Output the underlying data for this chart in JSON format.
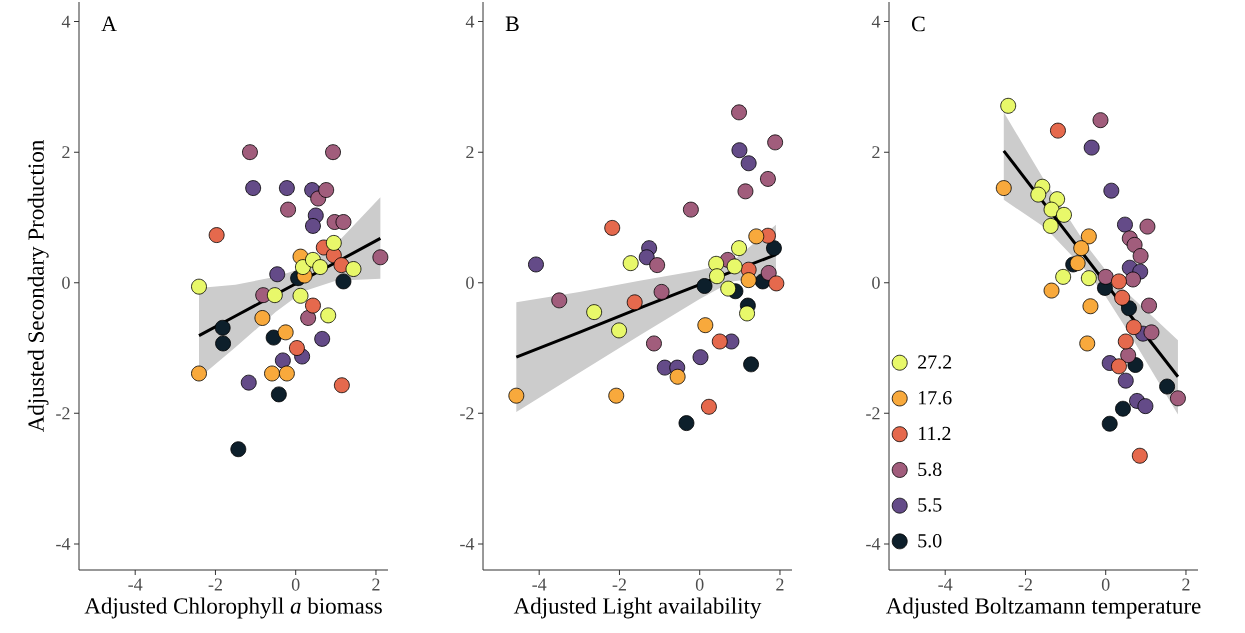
{
  "chart_data": [
    {
      "type": "scatter",
      "title": "A",
      "xlabel": "Adjusted Chlorophyll *a* biomass",
      "ylabel": "Adjusted Secondary Production",
      "xlim": [
        -5.4,
        2.3
      ],
      "ylim": [
        -4.4,
        4.3
      ],
      "xticks": [
        -4,
        -2,
        0,
        2
      ],
      "yticks": [
        -4,
        -2,
        0,
        2,
        4
      ],
      "legend": false,
      "series": [
        {
          "marker": "circle",
          "color": "#e8f86a",
          "x": [
            -2.41,
            -0.52,
            0.12,
            0.18,
            0.43,
            0.61,
            0.95,
            0.81,
            1.44
          ],
          "values": [
            -0.06,
            -0.19,
            -0.2,
            0.24,
            0.35,
            0.24,
            0.61,
            -0.5,
            0.21
          ]
        },
        {
          "marker": "circle",
          "color": "#f8a93c",
          "x": [
            -2.41,
            -0.83,
            -0.25,
            -0.59,
            -0.22,
            0.12,
            0.22
          ],
          "values": [
            -1.39,
            -0.54,
            -0.76,
            -1.39,
            -1.39,
            0.4,
            0.11
          ]
        },
        {
          "marker": "circle",
          "color": "#e5694d",
          "x": [
            -1.97,
            0.43,
            0.03,
            0.7,
            0.95,
            1.14,
            1.15
          ],
          "values": [
            0.73,
            -0.35,
            -1.0,
            0.54,
            0.42,
            0.27,
            -1.57
          ]
        },
        {
          "marker": "circle",
          "color": "#a15d7c",
          "x": [
            -1.14,
            0.93,
            -0.19,
            0.56,
            0.76,
            0.97,
            1.19,
            -0.81,
            0.31,
            2.11
          ],
          "values": [
            2.0,
            2.0,
            1.12,
            1.29,
            1.42,
            0.93,
            0.93,
            -0.19,
            -0.54,
            0.39
          ]
        },
        {
          "marker": "circle",
          "color": "#644b88",
          "x": [
            -1.06,
            -0.22,
            0.41,
            0.5,
            0.43,
            -0.46,
            -1.17,
            -0.32,
            0.16,
            0.66
          ],
          "values": [
            1.45,
            1.45,
            1.42,
            1.03,
            0.87,
            0.13,
            -1.53,
            -1.19,
            -1.13,
            -0.86
          ]
        },
        {
          "marker": "circle",
          "color": "#0d1f2b",
          "x": [
            -1.82,
            -1.81,
            -0.55,
            -0.42,
            -1.43,
            1.19,
            0.06
          ],
          "values": [
            -0.69,
            -0.93,
            -0.84,
            -1.71,
            -2.55,
            0.02,
            0.07
          ]
        },
        {
          "type": "line",
          "marker": "none",
          "color": "#000000",
          "x": [
            -2.41,
            -1.5,
            -0.5,
            0.2,
            1.0,
            2.11
          ],
          "values": [
            -0.81,
            -0.51,
            -0.18,
            0.05,
            0.31,
            0.68
          ],
          "upper": [
            -0.08,
            -0.03,
            0.09,
            0.23,
            0.59,
            1.31
          ],
          "lower": [
            -1.46,
            -0.99,
            -0.45,
            -0.13,
            0.03,
            0.06
          ]
        }
      ]
    },
    {
      "type": "scatter",
      "title": "B",
      "xlabel": "Adjusted Light availability",
      "xlim": [
        -5.4,
        2.3
      ],
      "ylim": [
        -4.4,
        4.3
      ],
      "xticks": [
        -4,
        -2,
        0,
        2
      ],
      "yticks": [
        -4,
        -2,
        0,
        2,
        4
      ],
      "legend": false,
      "series": [
        {
          "marker": "circle",
          "color": "#e8f86a",
          "x": [
            -1.72,
            -2.63,
            -2.01,
            0.41,
            0.43,
            0.71,
            0.87,
            0.98,
            1.18
          ],
          "values": [
            0.3,
            -0.45,
            -0.73,
            0.29,
            0.1,
            -0.09,
            0.25,
            0.53,
            -0.47
          ]
        },
        {
          "marker": "circle",
          "color": "#f8a93c",
          "x": [
            -4.57,
            -2.08,
            -0.55,
            0.14,
            1.41,
            1.22
          ],
          "values": [
            -1.73,
            -1.73,
            -1.44,
            -0.65,
            0.71,
            0.04
          ]
        },
        {
          "marker": "circle",
          "color": "#e5694d",
          "x": [
            -2.18,
            -1.62,
            0.5,
            0.23,
            1.7,
            1.91,
            1.22
          ],
          "values": [
            0.84,
            -0.3,
            -0.9,
            -1.9,
            0.72,
            -0.01,
            0.2
          ]
        },
        {
          "marker": "circle",
          "color": "#a15d7c",
          "x": [
            -3.5,
            -1.06,
            -0.95,
            -0.22,
            -1.14,
            0.98,
            1.14,
            1.7,
            1.88,
            1.72,
            0.7
          ],
          "values": [
            -0.27,
            0.27,
            -0.14,
            1.12,
            -0.93,
            2.61,
            1.4,
            1.59,
            2.15,
            0.15,
            0.35
          ]
        },
        {
          "marker": "circle",
          "color": "#644b88",
          "x": [
            -4.08,
            -1.26,
            -1.32,
            -0.87,
            -0.56,
            0.02,
            0.79,
            0.99,
            1.22
          ],
          "values": [
            0.28,
            0.53,
            0.39,
            -1.3,
            -1.3,
            -1.14,
            -0.9,
            2.03,
            1.83
          ]
        },
        {
          "marker": "circle",
          "color": "#0d1f2b",
          "x": [
            0.12,
            0.89,
            1.2,
            1.28,
            -0.33,
            1.85,
            1.57
          ],
          "values": [
            -0.05,
            -0.13,
            -0.35,
            -1.25,
            -2.15,
            0.53,
            0.02
          ]
        },
        {
          "type": "line",
          "marker": "none",
          "color": "#000000",
          "x": [
            -4.57,
            -3.0,
            -1.5,
            0.0,
            0.8,
            1.9
          ],
          "values": [
            -1.14,
            -0.76,
            -0.39,
            -0.03,
            0.17,
            0.43
          ],
          "upper": [
            -0.3,
            -0.14,
            0.03,
            0.19,
            0.32,
            0.89
          ],
          "lower": [
            -1.98,
            -1.38,
            -0.81,
            -0.25,
            0.02,
            0.1
          ]
        }
      ]
    },
    {
      "type": "scatter",
      "title": "C",
      "xlabel": "Adjusted Boltzamann temperature",
      "xlim": [
        -5.4,
        2.3
      ],
      "ylim": [
        -4.4,
        4.3
      ],
      "xticks": [
        -4,
        -2,
        0,
        2
      ],
      "yticks": [
        -4,
        -2,
        0,
        2,
        4
      ],
      "legend": "bottom left",
      "series": [
        {
          "name": "27.2",
          "marker": "circle",
          "color": "#e8f86a",
          "x": [
            -2.43,
            -1.58,
            -1.68,
            -1.21,
            -1.35,
            -1.04,
            -1.37,
            -1.06,
            -0.42
          ],
          "values": [
            2.71,
            1.47,
            1.35,
            1.28,
            1.12,
            1.04,
            0.87,
            0.09,
            0.07
          ]
        },
        {
          "name": "17.6",
          "marker": "circle",
          "color": "#f8a93c",
          "x": [
            -2.54,
            -0.42,
            -0.61,
            -0.7,
            -1.35,
            -0.38,
            -0.46
          ],
          "values": [
            1.45,
            0.71,
            0.53,
            0.3,
            -0.12,
            -0.36,
            -0.93
          ]
        },
        {
          "name": "11.2",
          "marker": "circle",
          "color": "#e5694d",
          "x": [
            -1.19,
            0.33,
            0.41,
            0.7,
            0.5,
            0.33,
            0.85
          ],
          "values": [
            2.33,
            0.02,
            -0.23,
            -0.68,
            -0.9,
            -1.28,
            -2.65
          ]
        },
        {
          "name": "5.8",
          "marker": "circle",
          "color": "#a15d7c",
          "x": [
            -0.13,
            1.04,
            0.6,
            0.72,
            0.87,
            0.68,
            0.0,
            1.08,
            1.14,
            0.56,
            1.8
          ],
          "values": [
            2.49,
            0.86,
            0.68,
            0.58,
            0.41,
            0.05,
            0.09,
            -0.35,
            -0.76,
            -1.11,
            -1.77
          ]
        },
        {
          "name": "5.5",
          "marker": "circle",
          "color": "#644b88",
          "x": [
            -0.35,
            0.14,
            0.48,
            0.6,
            0.86,
            0.93,
            0.1,
            0.5,
            0.78,
            0.99
          ],
          "values": [
            2.07,
            1.41,
            0.89,
            0.23,
            0.17,
            -0.78,
            -1.23,
            -1.5,
            -1.81,
            -1.89
          ]
        },
        {
          "name": "5.0",
          "marker": "circle",
          "color": "#0d1f2b",
          "x": [
            -0.81,
            -0.02,
            0.58,
            0.74,
            1.53,
            0.43,
            0.1
          ],
          "values": [
            0.28,
            -0.08,
            -0.39,
            -1.26,
            -1.59,
            -1.93,
            -2.16
          ]
        },
        {
          "type": "line",
          "marker": "none",
          "color": "#000000",
          "x": [
            -2.54,
            -1.5,
            -0.5,
            0.0,
            0.6,
            1.8
          ],
          "values": [
            2.02,
            1.19,
            0.39,
            -0.01,
            -0.49,
            -1.44
          ],
          "upper": [
            2.61,
            1.54,
            0.59,
            0.19,
            -0.19,
            -0.88
          ],
          "lower": [
            1.27,
            0.84,
            0.19,
            -0.21,
            -0.79,
            -2.02
          ]
        }
      ]
    }
  ]
}
